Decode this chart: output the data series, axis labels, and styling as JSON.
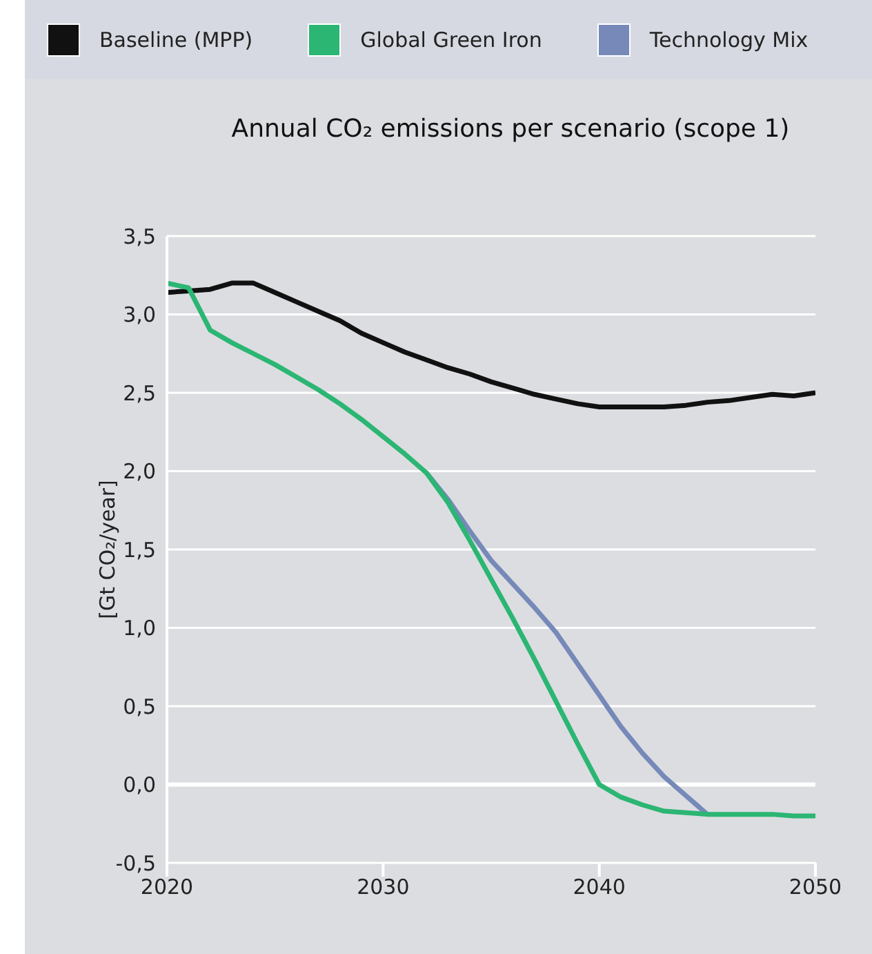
{
  "chart_data": {
    "type": "line",
    "title": "Annual CO₂ emissions per scenario (scope 1)",
    "ylabel": "[Gt CO₂/year]",
    "x": [
      2020,
      2021,
      2022,
      2023,
      2024,
      2025,
      2026,
      2027,
      2028,
      2029,
      2030,
      2031,
      2032,
      2033,
      2034,
      2035,
      2036,
      2037,
      2038,
      2039,
      2040,
      2041,
      2042,
      2043,
      2044,
      2045,
      2046,
      2047,
      2048,
      2049,
      2050
    ],
    "series": [
      {
        "name": "Baseline (MPP)",
        "color": "#111111",
        "values": [
          3.14,
          3.15,
          3.16,
          3.2,
          3.2,
          3.14,
          3.08,
          3.02,
          2.96,
          2.88,
          2.82,
          2.76,
          2.71,
          2.66,
          2.62,
          2.57,
          2.53,
          2.49,
          2.46,
          2.43,
          2.41,
          2.41,
          2.41,
          2.41,
          2.42,
          2.44,
          2.45,
          2.47,
          2.49,
          2.48,
          2.5
        ]
      },
      {
        "name": "Global Green Iron",
        "color": "#2bb673",
        "values": [
          3.2,
          3.17,
          2.9,
          2.82,
          2.75,
          2.68,
          2.6,
          2.52,
          2.43,
          2.33,
          2.22,
          2.11,
          1.99,
          1.8,
          1.56,
          1.31,
          1.06,
          0.8,
          0.53,
          0.26,
          0.0,
          -0.08,
          -0.13,
          -0.17,
          -0.18,
          -0.19,
          -0.19,
          -0.19,
          -0.19,
          -0.2,
          -0.2
        ]
      },
      {
        "name": "Technology Mix",
        "color": "#7689b8",
        "values": [
          null,
          null,
          null,
          null,
          null,
          null,
          null,
          null,
          null,
          null,
          null,
          null,
          1.99,
          1.82,
          1.62,
          1.43,
          1.28,
          1.13,
          0.97,
          0.77,
          0.57,
          0.37,
          0.2,
          0.05,
          -0.07,
          -0.19,
          null,
          null,
          null,
          null,
          null
        ]
      }
    ],
    "xlim": [
      2020,
      2050
    ],
    "xticks": [
      2020,
      2030,
      2040,
      2050
    ],
    "ylim": [
      -0.5,
      3.5
    ],
    "yticks": [
      {
        "value": -0.5,
        "label": "-0,5"
      },
      {
        "value": 0,
        "label": "0,0"
      },
      {
        "value": 0.5,
        "label": "0,5"
      },
      {
        "value": 1,
        "label": "1,0"
      },
      {
        "value": 1.5,
        "label": "1,5"
      },
      {
        "value": 2,
        "label": "2,0"
      },
      {
        "value": 2.5,
        "label": "2,5"
      },
      {
        "value": 3,
        "label": "3,0"
      },
      {
        "value": 3.5,
        "label": "3,5"
      }
    ],
    "ref_lines": [
      {
        "axis": "y",
        "value": 0,
        "color": "#ffffff"
      }
    ],
    "grid": "y",
    "legend": "top",
    "marker": "none",
    "line_style": "solid"
  }
}
